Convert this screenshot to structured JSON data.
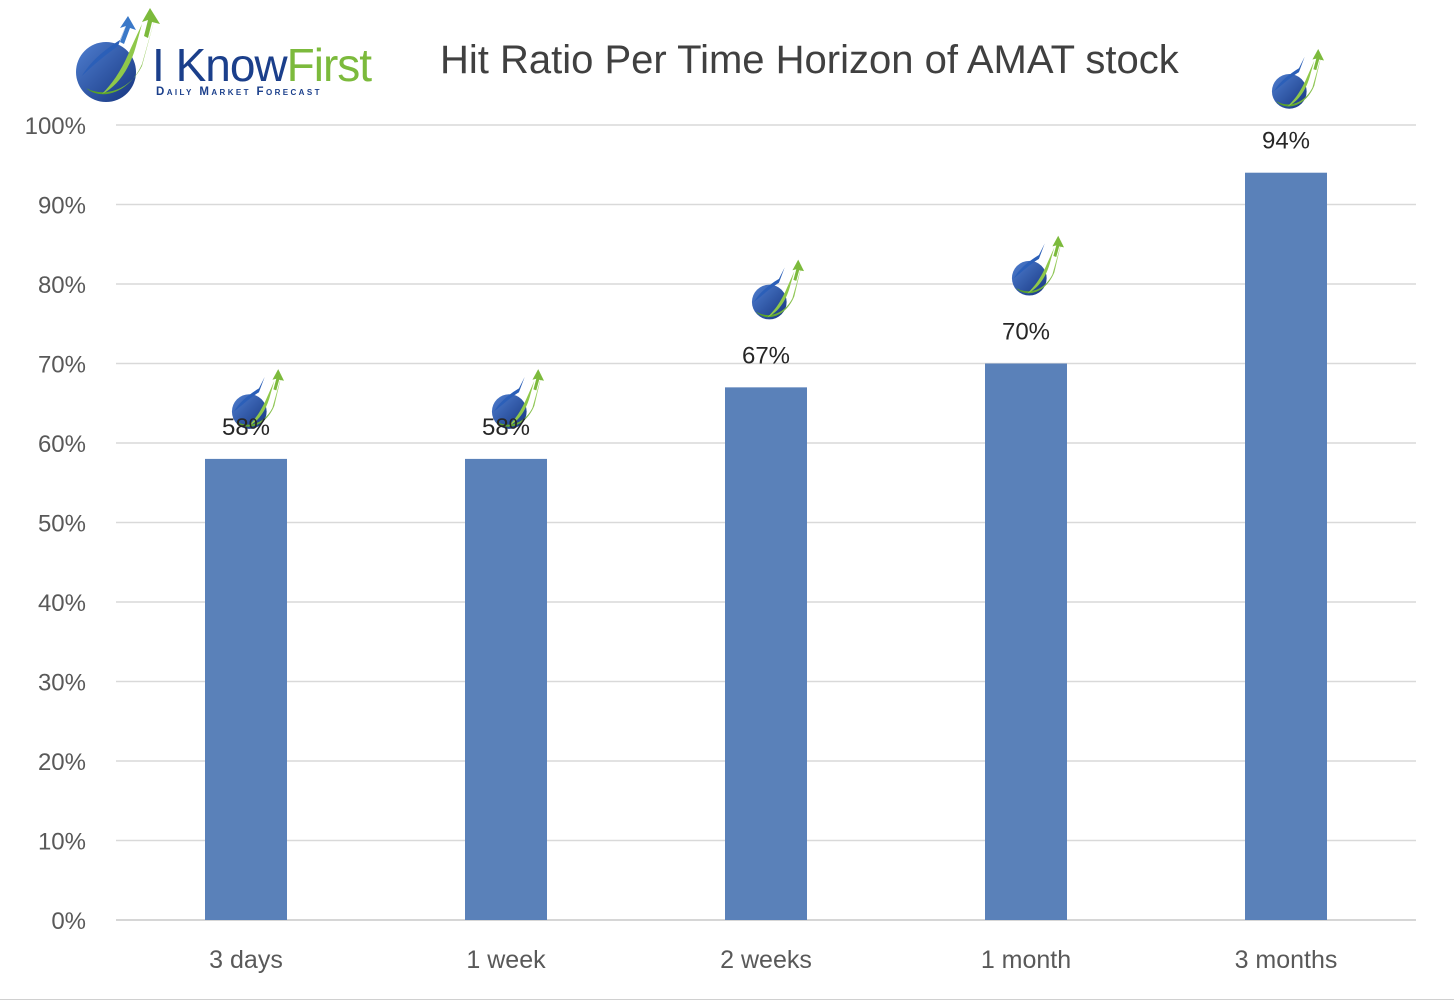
{
  "logo": {
    "word_i": "I",
    "word_know": "Know",
    "word_first": "First",
    "tagline": "Daily Market Forecast"
  },
  "chart_data": {
    "type": "bar",
    "title": "Hit Ratio Per Time Horizon of AMAT stock",
    "categories": [
      "3 days",
      "1 week",
      "2 weeks",
      "1 month",
      "3 months"
    ],
    "values": [
      58,
      58,
      67,
      70,
      94
    ],
    "data_labels": [
      "58%",
      "58%",
      "67%",
      "70%",
      "94%"
    ],
    "y_ticks": [
      "0%",
      "10%",
      "20%",
      "30%",
      "40%",
      "50%",
      "60%",
      "70%",
      "80%",
      "90%",
      "100%"
    ],
    "ylim": [
      0,
      100
    ],
    "grid": true,
    "bar_color": "#5a81b9",
    "marker_icon": "i-know-first-logo-icon"
  }
}
